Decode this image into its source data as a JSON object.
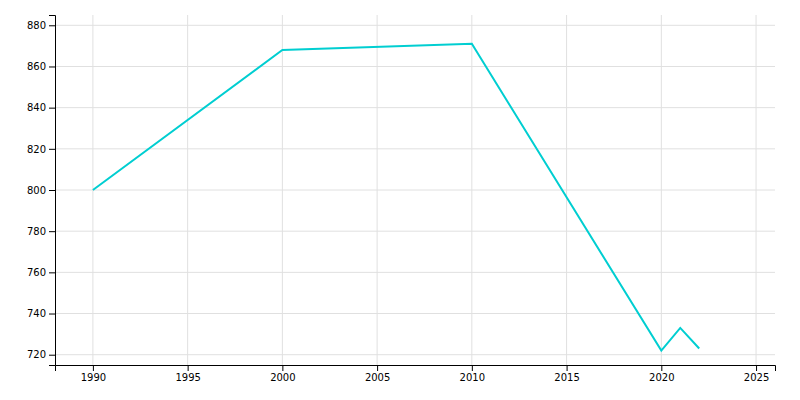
{
  "chart_data": {
    "type": "line",
    "x": [
      1990,
      2000,
      2010,
      2020,
      2021,
      2022
    ],
    "values": [
      800,
      868,
      871,
      722,
      733,
      723
    ],
    "color": "#00CED1",
    "xlim": [
      1988,
      2026
    ],
    "ylim": [
      715,
      885
    ],
    "xticks": [
      1990,
      1995,
      2000,
      2005,
      2010,
      2015,
      2020,
      2025
    ],
    "yticks": [
      720,
      740,
      760,
      780,
      800,
      820,
      840,
      860,
      880
    ],
    "grid": true
  }
}
